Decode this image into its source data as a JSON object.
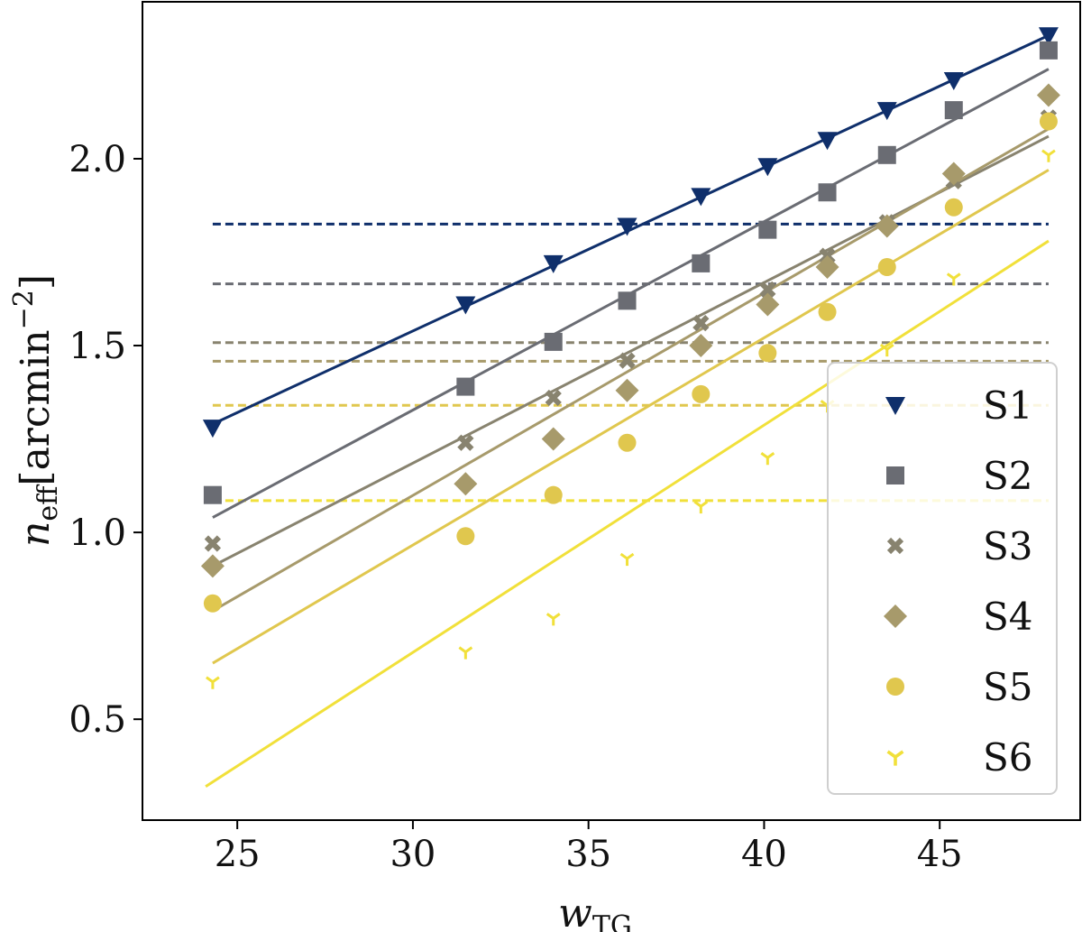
{
  "chart_data": {
    "type": "scatter",
    "title": "",
    "xlabel": {
      "main": "w",
      "sub": "TG"
    },
    "ylabel": {
      "main": "n",
      "sub": "eff",
      "unit_open": "[arcmin",
      "unit_exp": "−2",
      "unit_close": "]"
    },
    "xlim": [
      22.3,
      49.0
    ],
    "ylim": [
      0.23,
      2.42
    ],
    "xticks": [
      25,
      30,
      35,
      40,
      45
    ],
    "xtick_labels": [
      "25",
      "30",
      "35",
      "40",
      "45"
    ],
    "yticks": [
      0.5,
      1.0,
      1.5,
      2.0
    ],
    "ytick_labels": [
      "0.5",
      "1.0",
      "1.5",
      "2.0"
    ],
    "grid": false,
    "legend_position": "lower-right",
    "x": [
      24.3,
      31.5,
      34.0,
      36.1,
      38.2,
      40.1,
      41.8,
      43.5,
      45.4,
      48.1
    ],
    "series": [
      {
        "name": "S1",
        "color": "#0f2f6b",
        "marker": "triangle-down",
        "values": [
          1.28,
          1.61,
          1.72,
          1.82,
          1.9,
          1.98,
          2.05,
          2.13,
          2.21,
          2.33
        ],
        "fit": {
          "x": [
            24.3,
            48.1
          ],
          "y": [
            1.29,
            2.33
          ]
        },
        "mean": 1.825
      },
      {
        "name": "S2",
        "color": "#6a6c73",
        "marker": "square",
        "values": [
          1.1,
          1.39,
          1.51,
          1.62,
          1.72,
          1.81,
          1.91,
          2.01,
          2.13,
          2.29
        ],
        "fit": {
          "x": [
            24.3,
            48.1
          ],
          "y": [
            1.04,
            2.24
          ]
        },
        "mean": 1.665
      },
      {
        "name": "S3",
        "color": "#88836f",
        "marker": "x",
        "values": [
          0.97,
          1.24,
          1.36,
          1.46,
          1.56,
          1.65,
          1.74,
          1.83,
          1.94,
          2.11
        ],
        "fit": {
          "x": [
            24.3,
            48.1
          ],
          "y": [
            0.91,
            2.06
          ]
        },
        "mean": 1.508
      },
      {
        "name": "S4",
        "color": "#a79a6b",
        "marker": "diamond",
        "values": [
          0.91,
          1.13,
          1.25,
          1.38,
          1.5,
          1.61,
          1.71,
          1.82,
          1.96,
          2.17
        ],
        "fit": {
          "x": [
            24.3,
            48.1
          ],
          "y": [
            0.79,
            2.08
          ]
        },
        "mean": 1.458
      },
      {
        "name": "S5",
        "color": "#e0c74e",
        "marker": "circle",
        "values": [
          0.81,
          0.99,
          1.1,
          1.24,
          1.37,
          1.48,
          1.59,
          1.71,
          1.87,
          2.1
        ],
        "fit": {
          "x": [
            24.3,
            48.1
          ],
          "y": [
            0.65,
            1.97
          ]
        },
        "mean": 1.34
      },
      {
        "name": "S6",
        "color": "#f1e03a",
        "marker": "tri-down",
        "values": [
          0.6,
          0.68,
          0.77,
          0.93,
          1.07,
          1.2,
          1.34,
          1.49,
          1.68,
          2.01
        ],
        "fit": {
          "x": [
            24.1,
            48.1
          ],
          "y": [
            0.32,
            1.78
          ]
        },
        "mean": 1.085
      }
    ]
  }
}
